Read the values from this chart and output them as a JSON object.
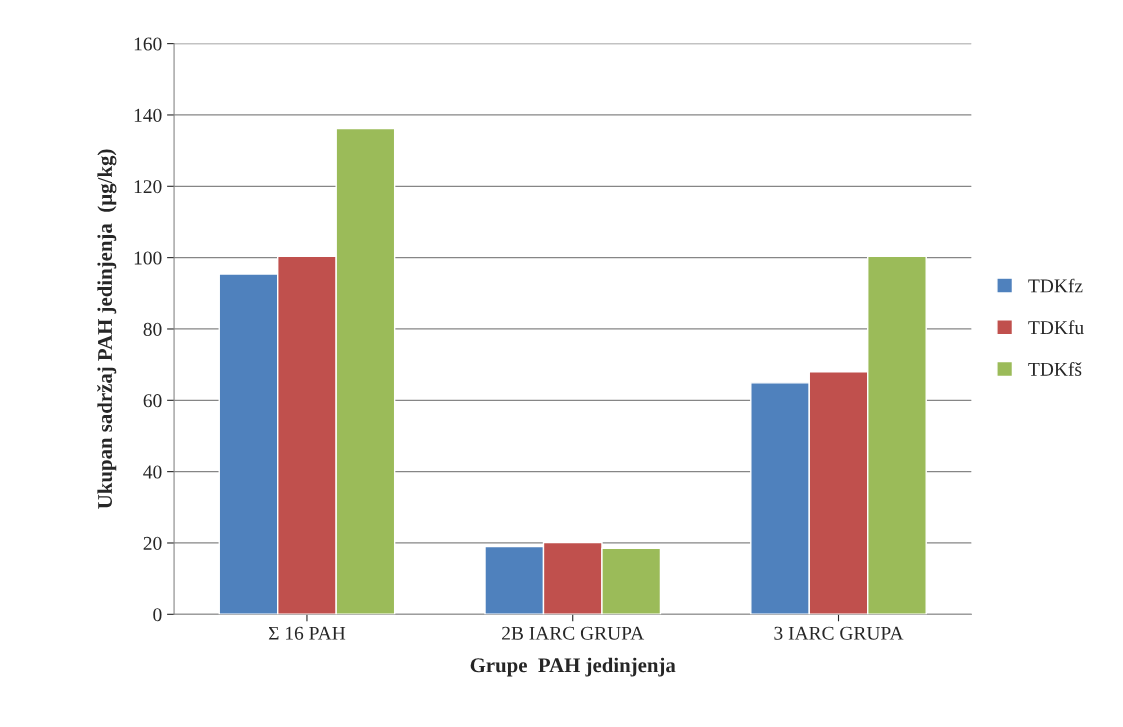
{
  "chart_data": {
    "type": "bar",
    "xlabel": "Grupe  PAH jedinjenja",
    "ylabel": "Ukupan sadržaj PAH jedinjenja  (µg/kg)",
    "categories": [
      "Σ 16 PAH",
      "2B IARC GRUPA",
      "3 IARC GRUPA"
    ],
    "series": [
      {
        "name": "TDKfz",
        "color": "#4f81bd",
        "values": [
          95.4,
          19.0,
          64.9
        ]
      },
      {
        "name": "TDKfu",
        "color": "#c0504d",
        "values": [
          100.4,
          20.1,
          68.0
        ]
      },
      {
        "name": "TDKfš",
        "color": "#9bbb59",
        "values": [
          136.2,
          18.5,
          100.4
        ]
      }
    ],
    "ylim": [
      0,
      160
    ],
    "yticks": [
      0,
      20,
      40,
      60,
      80,
      100,
      120,
      140,
      160
    ],
    "grid": "y",
    "legend": "right"
  }
}
